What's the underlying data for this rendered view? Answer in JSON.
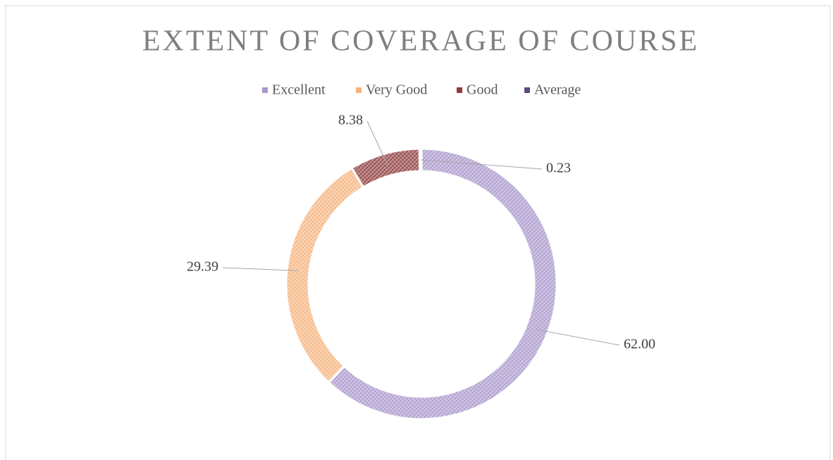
{
  "chart_data": {
    "type": "donut",
    "title": "EXTENT OF COVERAGE OF COURSE",
    "categories": [
      "Excellent",
      "Very Good",
      "Good",
      "Average"
    ],
    "values": [
      62,
      29.39,
      8.38,
      0.23
    ],
    "value_labels": [
      "62.00",
      "29.39",
      "8.38",
      "0.23"
    ],
    "colors": [
      "#a996cc",
      "#f5b27c",
      "#8e3b3b",
      "#5f4a7e"
    ],
    "legend": "top"
  }
}
